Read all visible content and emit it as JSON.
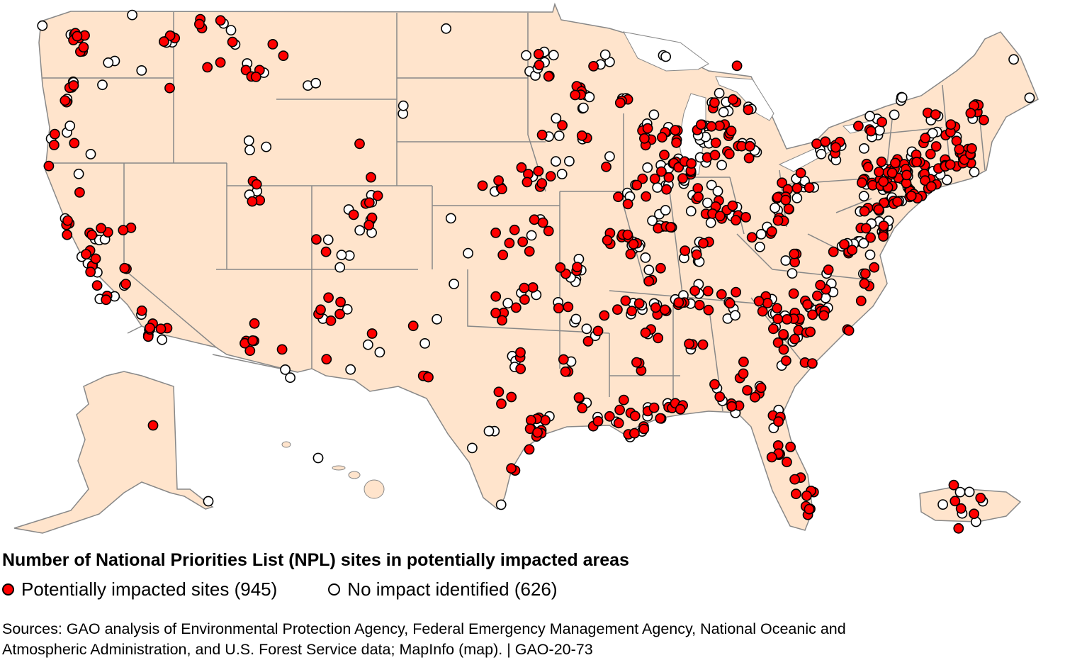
{
  "map": {
    "land_color": "#ffe4cc",
    "border_color": "#888888",
    "regions_shown": [
      "Contiguous United States",
      "Alaska",
      "Hawaii",
      "Puerto Rico"
    ]
  },
  "legend": {
    "title": "Number of National Priorities List (NPL) sites in potentially impacted areas",
    "items": [
      {
        "label": "Potentially impacted sites (945)",
        "symbol": "filled-circle",
        "color": "#ff0000",
        "count": 945
      },
      {
        "label": "No impact identified (626)",
        "symbol": "open-circle",
        "color": "#ffffff",
        "count": 626
      }
    ]
  },
  "sources": {
    "line1": "Sources: GAO analysis of Environmental Protection Agency, Federal Emergency Management Agency, National Oceanic and",
    "line2": "Atmospheric Administration, and U.S. Forest Service data; MapInfo (map).  |  GAO-20-73"
  }
}
